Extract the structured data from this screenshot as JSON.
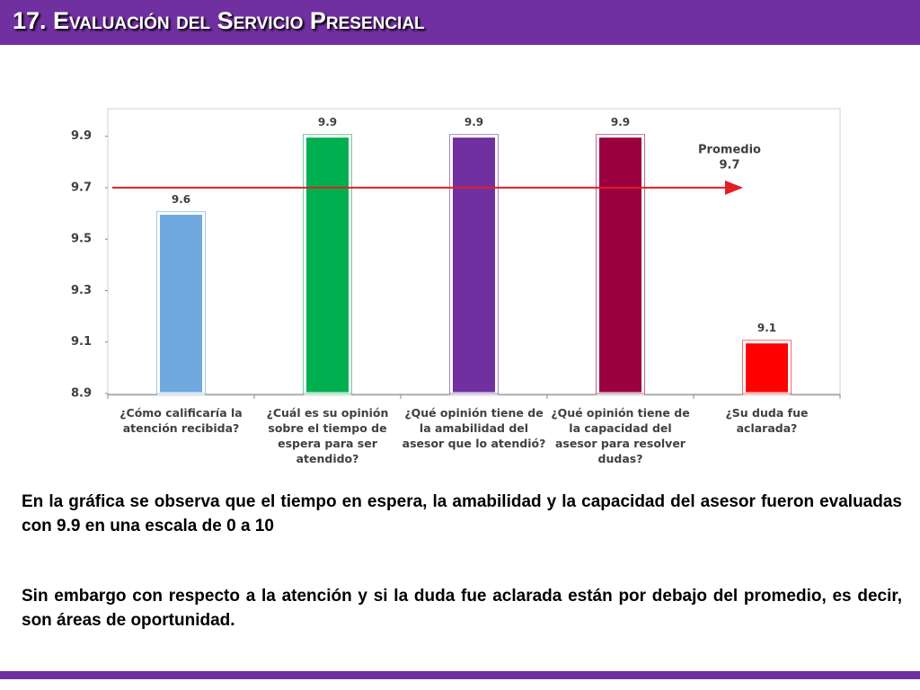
{
  "header": {
    "title": "17. Evaluación del Servicio Presencial"
  },
  "chart_data": {
    "type": "bar",
    "categories": [
      "¿Cómo calificaría la atención recibida?",
      "¿Cuál es su opinión sobre el tiempo de espera para ser atendido?",
      "¿Qué opinión tiene de la amabilidad del asesor que lo atendió?",
      "¿Qué opinión tiene de la capacidad del asesor para resolver dudas?",
      "¿Su duda fue aclarada?"
    ],
    "values": [
      9.6,
      9.9,
      9.9,
      9.9,
      9.1
    ],
    "colors": [
      "#6fa8dc",
      "#00b050",
      "#7030a0",
      "#9b0040",
      "#ff0000"
    ],
    "ylim": [
      8.9,
      10.0
    ],
    "yticks": [
      8.9,
      9.1,
      9.3,
      9.5,
      9.7,
      9.9
    ],
    "average": {
      "label": "Promedio",
      "value": 9.7,
      "color": "#e31e24"
    }
  },
  "text": {
    "paragraphs": [
      "En la gráfica se observa que el tiempo en espera,  la amabilidad y la capacidad del asesor fueron evaluadas con 9.9 en una escala de 0 a 10",
      "Sin embargo con respecto a la atención y si la duda fue aclarada están por debajo del promedio, es decir, son áreas de oportunidad."
    ]
  }
}
